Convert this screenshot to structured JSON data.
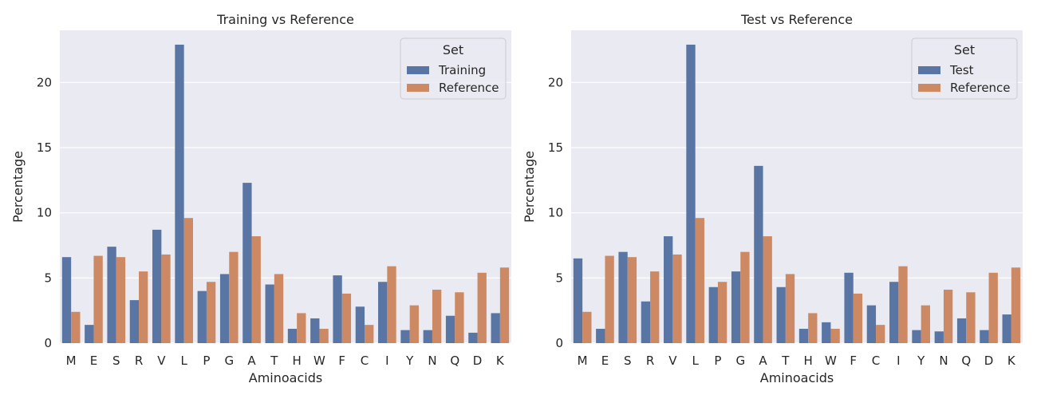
{
  "chart_data": [
    {
      "type": "bar",
      "title": "Training vs Reference",
      "xlabel": "Aminoacids",
      "ylabel": "Percentage",
      "ylim": [
        0,
        24
      ],
      "yticks": [
        0,
        5,
        10,
        15,
        20
      ],
      "grid": true,
      "legend": {
        "title": "Set",
        "placement": "top-right"
      },
      "categories": [
        "M",
        "E",
        "S",
        "R",
        "V",
        "L",
        "P",
        "G",
        "A",
        "T",
        "H",
        "W",
        "F",
        "C",
        "I",
        "Y",
        "N",
        "Q",
        "D",
        "K"
      ],
      "series": [
        {
          "name": "Training",
          "color": "#5975a4",
          "values": [
            6.6,
            1.4,
            7.4,
            3.3,
            8.7,
            22.9,
            4.0,
            5.3,
            12.3,
            4.5,
            1.1,
            1.9,
            5.2,
            2.8,
            4.7,
            1.0,
            1.0,
            2.1,
            0.8,
            2.3
          ]
        },
        {
          "name": "Reference",
          "color": "#cc8963",
          "values": [
            2.4,
            6.7,
            6.6,
            5.5,
            6.8,
            9.6,
            4.7,
            7.0,
            8.2,
            5.3,
            2.3,
            1.1,
            3.8,
            1.4,
            5.9,
            2.9,
            4.1,
            3.9,
            5.4,
            5.8
          ]
        }
      ]
    },
    {
      "type": "bar",
      "title": "Test vs Reference",
      "xlabel": "Aminoacids",
      "ylabel": "Percentage",
      "ylim": [
        0,
        24
      ],
      "yticks": [
        0,
        5,
        10,
        15,
        20
      ],
      "grid": true,
      "legend": {
        "title": "Set",
        "placement": "top-right"
      },
      "categories": [
        "M",
        "E",
        "S",
        "R",
        "V",
        "L",
        "P",
        "G",
        "A",
        "T",
        "H",
        "W",
        "F",
        "C",
        "I",
        "Y",
        "N",
        "Q",
        "D",
        "K"
      ],
      "series": [
        {
          "name": "Test",
          "color": "#5975a4",
          "values": [
            6.5,
            1.1,
            7.0,
            3.2,
            8.2,
            22.9,
            4.3,
            5.5,
            13.6,
            4.3,
            1.1,
            1.6,
            5.4,
            2.9,
            4.7,
            1.0,
            0.9,
            1.9,
            1.0,
            2.2
          ]
        },
        {
          "name": "Reference",
          "color": "#cc8963",
          "values": [
            2.4,
            6.7,
            6.6,
            5.5,
            6.8,
            9.6,
            4.7,
            7.0,
            8.2,
            5.3,
            2.3,
            1.1,
            3.8,
            1.4,
            5.9,
            2.9,
            4.1,
            3.9,
            5.4,
            5.8
          ]
        }
      ]
    }
  ]
}
